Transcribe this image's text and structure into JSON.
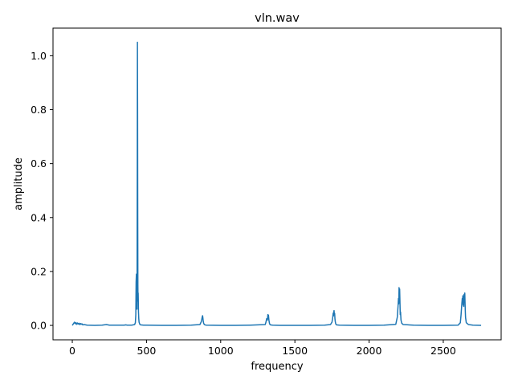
{
  "chart_data": {
    "type": "line",
    "title": "vln.wav",
    "xlabel": "frequency",
    "ylabel": "amplitude",
    "xlim": [
      -130,
      2890
    ],
    "ylim": [
      -0.0535,
      1.1025
    ],
    "xticks": [
      0,
      500,
      1000,
      1500,
      2000,
      2500
    ],
    "xtick_labels": [
      "0",
      "500",
      "1000",
      "1500",
      "2000",
      "2500"
    ],
    "yticks": [
      0.0,
      0.2,
      0.4,
      0.6,
      0.8,
      1.0
    ],
    "ytick_labels": [
      "0.0",
      "0.2",
      "0.4",
      "0.6",
      "0.8",
      "1.0"
    ],
    "grid": false,
    "series": [
      {
        "color": "#1f77b4",
        "x": [
          0,
          10,
          15,
          20,
          25,
          30,
          35,
          40,
          45,
          50,
          55,
          60,
          65,
          70,
          80,
          100,
          150,
          200,
          230,
          240,
          250,
          300,
          350,
          360,
          370,
          400,
          420,
          425,
          428,
          430,
          432,
          434,
          436,
          437,
          438,
          439,
          440,
          441,
          442,
          443,
          444,
          446,
          448,
          450,
          455,
          460,
          480,
          500,
          600,
          700,
          800,
          860,
          870,
          875,
          878,
          880,
          882,
          885,
          890,
          900,
          1000,
          1100,
          1200,
          1300,
          1305,
          1310,
          1315,
          1318,
          1320,
          1322,
          1325,
          1328,
          1330,
          1335,
          1350,
          1400,
          1500,
          1600,
          1700,
          1740,
          1750,
          1755,
          1758,
          1760,
          1762,
          1764,
          1766,
          1768,
          1770,
          1772,
          1775,
          1780,
          1800,
          1900,
          2000,
          2100,
          2180,
          2190,
          2195,
          2198,
          2200,
          2202,
          2204,
          2206,
          2208,
          2210,
          2212,
          2215,
          2220,
          2230,
          2300,
          2400,
          2500,
          2600,
          2615,
          2620,
          2625,
          2628,
          2630,
          2632,
          2634,
          2636,
          2638,
          2640,
          2642,
          2645,
          2648,
          2650,
          2655,
          2670,
          2700,
          2755
        ],
        "y": [
          0.0,
          0.008,
          0.012,
          0.006,
          0.01,
          0.004,
          0.009,
          0.005,
          0.008,
          0.003,
          0.007,
          0.004,
          0.006,
          0.002,
          0.003,
          0.001,
          0.0,
          0.001,
          0.003,
          0.002,
          0.001,
          0.001,
          0.001,
          0.002,
          0.001,
          0.001,
          0.003,
          0.01,
          0.04,
          0.16,
          0.19,
          0.1,
          0.06,
          0.3,
          0.6,
          1.05,
          0.8,
          0.4,
          0.15,
          0.09,
          0.12,
          0.05,
          0.025,
          0.012,
          0.004,
          0.002,
          0.001,
          0.001,
          0.0,
          0.0,
          0.001,
          0.003,
          0.015,
          0.03,
          0.036,
          0.028,
          0.018,
          0.008,
          0.003,
          0.001,
          0.0,
          0.0,
          0.001,
          0.003,
          0.012,
          0.025,
          0.02,
          0.04,
          0.03,
          0.038,
          0.02,
          0.01,
          0.005,
          0.002,
          0.001,
          0.0,
          0.0,
          0.0,
          0.001,
          0.003,
          0.012,
          0.03,
          0.045,
          0.035,
          0.05,
          0.055,
          0.04,
          0.045,
          0.025,
          0.015,
          0.006,
          0.002,
          0.001,
          0.0,
          0.0,
          0.001,
          0.004,
          0.03,
          0.07,
          0.1,
          0.08,
          0.14,
          0.11,
          0.135,
          0.09,
          0.04,
          0.05,
          0.02,
          0.008,
          0.003,
          0.001,
          0.0,
          0.0,
          0.001,
          0.01,
          0.04,
          0.08,
          0.1,
          0.09,
          0.11,
          0.075,
          0.105,
          0.07,
          0.115,
          0.1,
          0.12,
          0.06,
          0.03,
          0.01,
          0.003,
          0.001,
          0.0
        ]
      }
    ]
  }
}
